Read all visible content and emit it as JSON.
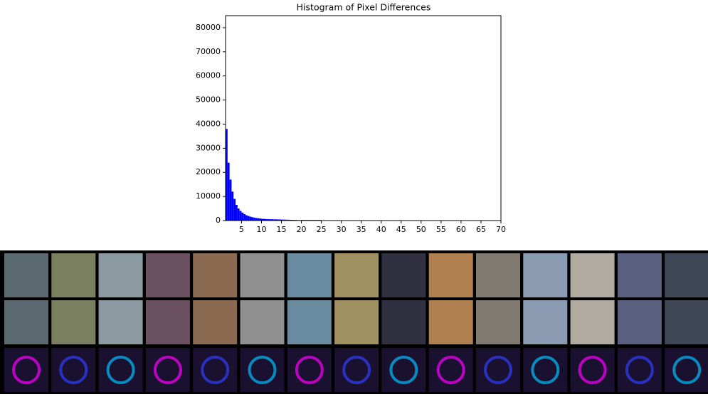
{
  "chart_data": {
    "type": "histogram",
    "title": "Histogram of Pixel Differences",
    "bins": [
      1,
      1.5,
      2,
      2.5,
      3,
      3.5,
      4,
      4.5,
      5,
      5.5,
      6,
      6.5,
      7,
      7.5,
      8,
      8.5,
      9,
      9.5,
      10,
      11,
      12,
      13,
      14,
      15,
      16,
      17,
      18,
      19,
      20,
      25,
      30,
      35,
      40,
      45,
      50,
      55,
      60,
      65,
      70
    ],
    "counts": [
      38000,
      24000,
      17000,
      12000,
      9000,
      6500,
      5000,
      4000,
      3300,
      2700,
      2200,
      1900,
      1600,
      1400,
      1200,
      1050,
      950,
      850,
      700,
      600,
      550,
      500,
      450,
      400,
      350,
      300,
      250,
      200,
      250,
      150,
      80,
      40,
      20,
      10,
      5,
      3,
      2,
      1
    ],
    "color": "#0000ff",
    "xlim": [
      1,
      70
    ],
    "ylim": [
      0,
      85000
    ],
    "xticks": [
      5,
      10,
      15,
      20,
      25,
      30,
      35,
      40,
      45,
      50,
      55,
      60,
      65,
      70
    ],
    "yticks": [
      0,
      10000,
      20000,
      30000,
      40000,
      50000,
      60000,
      70000,
      80000
    ]
  }
}
